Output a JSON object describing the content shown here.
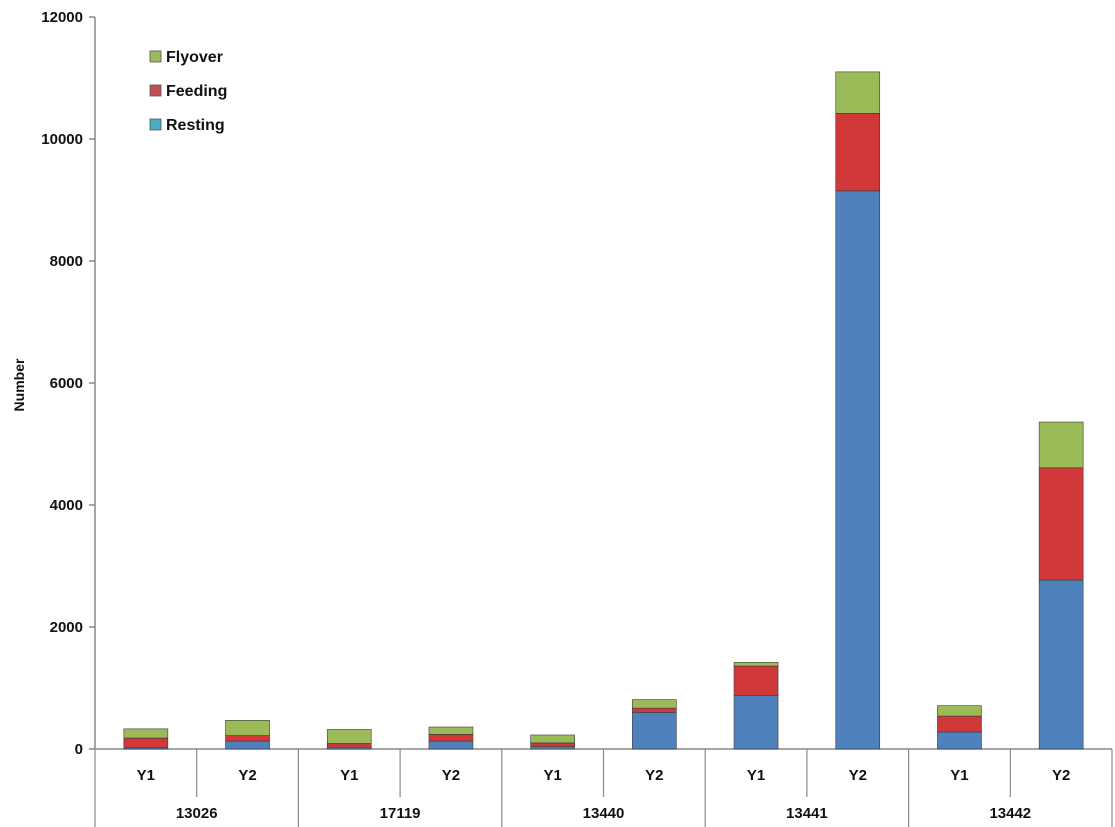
{
  "chart_data": {
    "type": "bar",
    "stacked": true,
    "ylabel": "Number",
    "xlabel": "",
    "ylim": [
      0,
      12000
    ],
    "yticks": [
      0,
      2000,
      4000,
      6000,
      8000,
      10000,
      12000
    ],
    "grid": false,
    "legend_position": "top-left",
    "groups": [
      {
        "label": "13026",
        "categories": [
          "Y1",
          "Y2"
        ]
      },
      {
        "label": "17119",
        "categories": [
          "Y1",
          "Y2"
        ]
      },
      {
        "label": "13440",
        "categories": [
          "Y1",
          "Y2"
        ]
      },
      {
        "label": "13441",
        "categories": [
          "Y1",
          "Y2"
        ]
      },
      {
        "label": "13442",
        "categories": [
          "Y1",
          "Y2"
        ]
      }
    ],
    "categories": [
      "Y1",
      "Y2",
      "Y1",
      "Y2",
      "Y1",
      "Y2",
      "Y1",
      "Y2",
      "Y1",
      "Y2"
    ],
    "series": [
      {
        "name": "Resting",
        "color": "#4f81bd",
        "values": [
          20,
          130,
          30,
          130,
          40,
          600,
          880,
          9150,
          280,
          2770
        ]
      },
      {
        "name": "Feeding",
        "color": "#d0383a",
        "values": [
          160,
          90,
          60,
          110,
          60,
          70,
          480,
          1270,
          260,
          1840
        ]
      },
      {
        "name": "Flyover",
        "color": "#9bbb59",
        "values": [
          150,
          250,
          230,
          120,
          130,
          140,
          60,
          680,
          170,
          750
        ]
      }
    ],
    "legend_entries": [
      {
        "name": "Flyover",
        "swatch_color": "#9bbb59"
      },
      {
        "name": "Feeding",
        "swatch_color": "#c0504d"
      },
      {
        "name": "Resting",
        "swatch_color": "#4bacc6"
      }
    ]
  }
}
